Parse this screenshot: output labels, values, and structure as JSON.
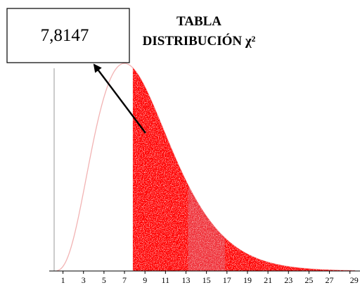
{
  "chart_data": {
    "type": "area",
    "title_line1": "TABLA",
    "title_line2": "DISTRIBUCIÓN χ²",
    "callout_value": "7,8147",
    "critical_value": 7.8147,
    "x_ticks": [
      "1",
      "3",
      "5",
      "7",
      "9",
      "11",
      "13",
      "15",
      "17",
      "19",
      "21",
      "23",
      "25",
      "27",
      "29"
    ],
    "xlim": [
      0,
      29.5
    ],
    "curve": {
      "distribution": "chi-square",
      "degrees_of_freedom": 9,
      "line_color": "#f2b3b3"
    },
    "shaded_region": {
      "from": 7.8147,
      "to": 29.5,
      "color": "#ff0000",
      "highlight_color": "#f0303a",
      "highlight_from": 13.2,
      "highlight_to": 16.8
    }
  }
}
